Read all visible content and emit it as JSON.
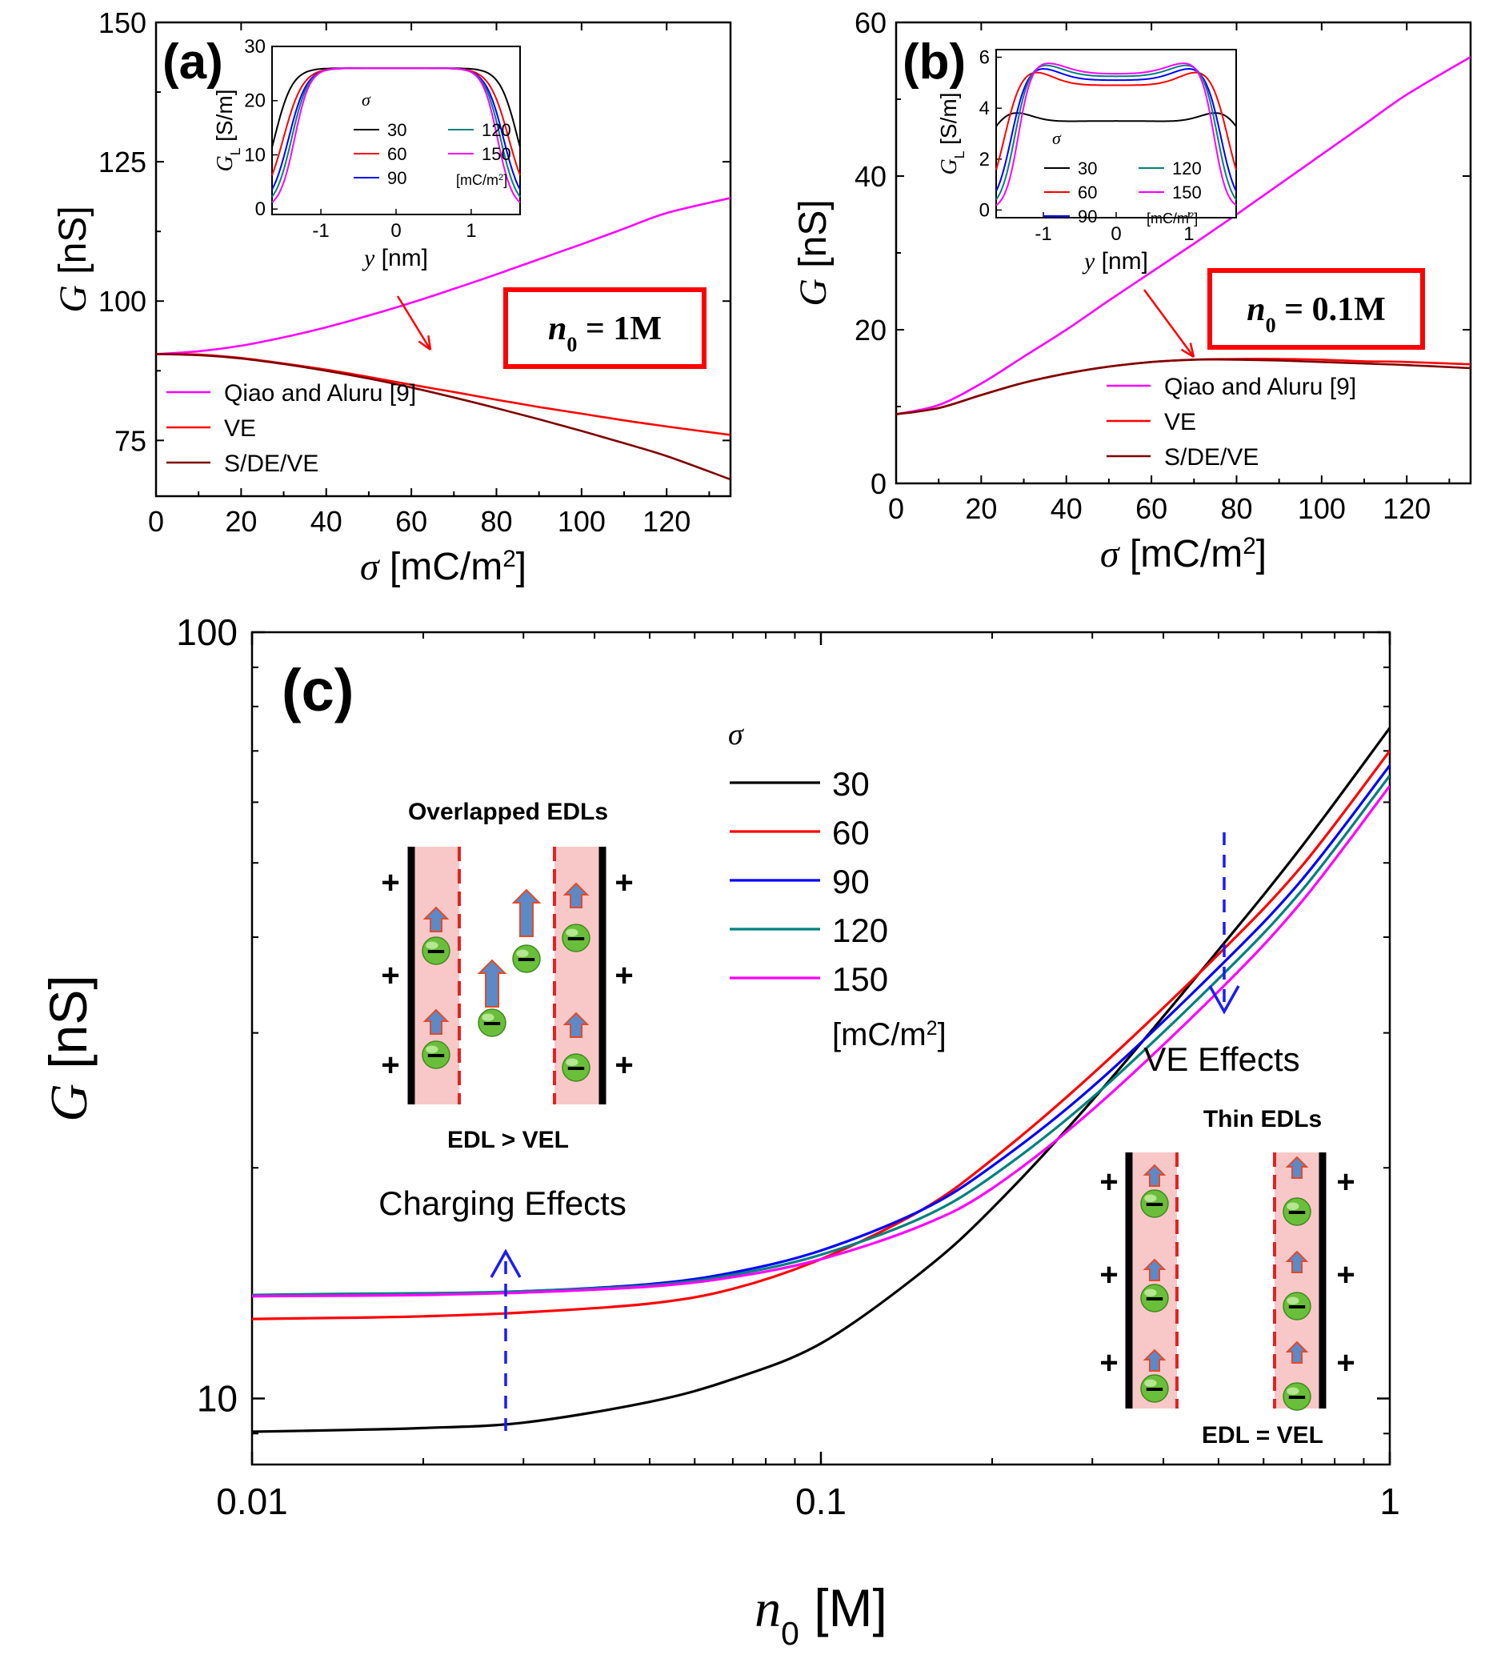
{
  "colors": {
    "black": "#000000",
    "red": "#ff0000",
    "blue": "#0000ff",
    "teal": "#008080",
    "magenta": "#ff00ff",
    "darkred": "#7f0000",
    "annot_blue": "#1a1aff",
    "edl_fill": "#f8c8c8",
    "arrow_fill": "#5b8ac7",
    "ion_green": "#6abf3a"
  },
  "chart_data": [
    {
      "panel": "(a)",
      "type": "line",
      "xlabel_var": "σ",
      "xlabel_unit": "[mC/m²]",
      "ylabel_var": "G",
      "ylabel_unit": "[nS]",
      "xlim": [
        0,
        135
      ],
      "ylim": [
        65,
        150
      ],
      "xticks": [
        0,
        20,
        40,
        60,
        80,
        100,
        120
      ],
      "yticks": [
        75,
        100,
        125,
        150
      ],
      "box_label_var": "n",
      "box_label_sub": "0",
      "box_label_val": " = 1M",
      "series": [
        {
          "name": "Qiao and Aluru [9]",
          "color": "#ff00ff",
          "x": [
            0,
            10,
            20,
            30,
            40,
            50,
            60,
            70,
            80,
            90,
            100,
            110,
            120,
            135
          ],
          "y": [
            90.5,
            91,
            92,
            93.5,
            95.3,
            97.4,
            99.7,
            102.2,
            104.8,
            107.5,
            110.2,
            113,
            115.8,
            118.5
          ]
        },
        {
          "name": "VE",
          "color": "#ff0000",
          "x": [
            0,
            10,
            20,
            30,
            40,
            50,
            60,
            70,
            80,
            90,
            100,
            110,
            120,
            135
          ],
          "y": [
            90.5,
            90.4,
            89.8,
            88.8,
            87.7,
            86.4,
            85,
            83.7,
            82.3,
            81,
            79.8,
            78.6,
            77.5,
            76
          ]
        },
        {
          "name": "S/DE/VE",
          "color": "#7f0000",
          "x": [
            0,
            10,
            20,
            30,
            40,
            50,
            60,
            70,
            80,
            90,
            100,
            110,
            120,
            135
          ],
          "y": [
            90.5,
            90.3,
            89.7,
            88.7,
            87.5,
            86.1,
            84.5,
            82.7,
            80.8,
            78.8,
            76.7,
            74.5,
            72.2,
            68
          ]
        }
      ],
      "inset": {
        "xlabel_var": "y",
        "xlabel_unit": "[nm]",
        "ylabel_var": "G",
        "ylabel_sub": "L",
        "ylabel_unit": "[S/m]",
        "xlim": [
          -1.65,
          1.65
        ],
        "ylim": [
          -1,
          30
        ],
        "xticks": [
          -1,
          0,
          1
        ],
        "xtick_labels": [
          "-1",
          "0",
          "1"
        ],
        "yticks": [
          0,
          10,
          20,
          30
        ],
        "legend_title": "σ",
        "legend_unit": "[mC/m²]",
        "series": [
          {
            "name": "30",
            "color": "#000000",
            "plateau": 26,
            "edge": 1.62,
            "width": 0.12,
            "rim": 0
          },
          {
            "name": "60",
            "color": "#ff0000",
            "plateau": 26,
            "edge": 1.5,
            "width": 0.13,
            "rim": 0
          },
          {
            "name": "90",
            "color": "#0000ff",
            "plateau": 26,
            "edge": 1.43,
            "width": 0.12,
            "rim": 0
          },
          {
            "name": "120",
            "color": "#008080",
            "plateau": 26,
            "edge": 1.39,
            "width": 0.11,
            "rim": 0
          },
          {
            "name": "150",
            "color": "#ff00ff",
            "plateau": 26,
            "edge": 1.35,
            "width": 0.1,
            "rim": 0
          }
        ]
      }
    },
    {
      "panel": "(b)",
      "type": "line",
      "xlabel_var": "σ",
      "xlabel_unit": "[mC/m²]",
      "ylabel_var": "G",
      "ylabel_unit": "[nS]",
      "xlim": [
        0,
        135
      ],
      "ylim": [
        0,
        60
      ],
      "xticks": [
        0,
        20,
        40,
        60,
        80,
        100,
        120
      ],
      "yticks": [
        0,
        20,
        40,
        60
      ],
      "box_label_var": "n",
      "box_label_sub": "0",
      "box_label_val": " = 0.1M",
      "series": [
        {
          "name": "Qiao and Aluru [9]",
          "color": "#ff00ff",
          "x": [
            0,
            10,
            20,
            30,
            40,
            50,
            60,
            70,
            80,
            90,
            100,
            110,
            120,
            135
          ],
          "y": [
            9,
            10.2,
            13,
            16.5,
            20,
            23.8,
            27.5,
            31.2,
            35,
            38.9,
            42.8,
            46.7,
            50.6,
            55.5
          ]
        },
        {
          "name": "VE",
          "color": "#ff0000",
          "x": [
            0,
            10,
            20,
            30,
            40,
            50,
            60,
            70,
            80,
            90,
            100,
            110,
            120,
            135
          ],
          "y": [
            9,
            9.8,
            11.5,
            13.1,
            14.3,
            15.2,
            15.8,
            16.1,
            16.2,
            16.2,
            16.1,
            15.9,
            15.8,
            15.5
          ]
        },
        {
          "name": "S/DE/VE",
          "color": "#7f0000",
          "x": [
            0,
            10,
            20,
            30,
            40,
            50,
            60,
            70,
            80,
            90,
            100,
            110,
            120,
            135
          ],
          "y": [
            9,
            9.8,
            11.5,
            13.1,
            14.3,
            15.2,
            15.8,
            16.1,
            16.1,
            16,
            15.8,
            15.6,
            15.4,
            15
          ]
        }
      ],
      "inset": {
        "xlabel_var": "y",
        "xlabel_unit": "[nm]",
        "ylabel_var": "G",
        "ylabel_sub": "L",
        "ylabel_unit": "[S/m]",
        "xlim": [
          -1.65,
          1.65
        ],
        "ylim": [
          -0.3,
          6.3
        ],
        "xticks": [
          -1,
          0,
          1
        ],
        "xtick_labels": [
          "-1",
          "0",
          "1"
        ],
        "yticks": [
          0,
          2,
          4,
          6
        ],
        "legend_title": "σ",
        "legend_unit": "[mC/m²]",
        "series": [
          {
            "name": "30",
            "color": "#000000",
            "plateau": 3.5,
            "edge": 1.9,
            "width": 0.25,
            "rim": 1.0
          },
          {
            "name": "60",
            "color": "#ff0000",
            "plateau": 4.9,
            "edge": 1.55,
            "width": 0.12,
            "rim": 0.7
          },
          {
            "name": "90",
            "color": "#0000ff",
            "plateau": 5.1,
            "edge": 1.45,
            "width": 0.11,
            "rim": 0.6
          },
          {
            "name": "120",
            "color": "#008080",
            "plateau": 5.25,
            "edge": 1.4,
            "width": 0.1,
            "rim": 0.55
          },
          {
            "name": "150",
            "color": "#ff00ff",
            "plateau": 5.35,
            "edge": 1.35,
            "width": 0.09,
            "rim": 0.5
          }
        ]
      }
    },
    {
      "panel": "(c)",
      "type": "line",
      "xscale": "log",
      "yscale": "log",
      "xlabel_var": "n",
      "xlabel_sub": "0",
      "xlabel_unit": "[M]",
      "ylabel_var": "G",
      "ylabel_unit": "[nS]",
      "xlim": [
        0.01,
        1
      ],
      "ylim": [
        8.2,
        100
      ],
      "xticks": [
        0.01,
        0.1,
        1
      ],
      "xtick_labels": [
        "0.01",
        "0.1",
        "1"
      ],
      "yticks": [
        10,
        100
      ],
      "ytick_labels": [
        "10",
        "100"
      ],
      "legend_title": "σ",
      "legend_unit": "[mC/m²]",
      "series": [
        {
          "name": "30",
          "color": "#000000",
          "x": [
            0.01,
            0.015,
            0.02,
            0.03,
            0.05,
            0.07,
            0.1,
            0.15,
            0.2,
            0.3,
            0.5,
            0.7,
            1
          ],
          "y": [
            9.05,
            9.1,
            9.15,
            9.3,
            9.9,
            10.6,
            11.8,
            14.6,
            17.7,
            24.5,
            38.5,
            52.5,
            75
          ]
        },
        {
          "name": "60",
          "color": "#ff0000",
          "x": [
            0.01,
            0.015,
            0.02,
            0.03,
            0.05,
            0.07,
            0.1,
            0.15,
            0.2,
            0.3,
            0.5,
            0.7,
            1
          ],
          "y": [
            12.7,
            12.75,
            12.8,
            12.95,
            13.3,
            13.9,
            15.2,
            17.6,
            20.5,
            26.5,
            38,
            49.5,
            70
          ]
        },
        {
          "name": "90",
          "color": "#0000ff",
          "x": [
            0.01,
            0.015,
            0.02,
            0.03,
            0.05,
            0.07,
            0.1,
            0.15,
            0.2,
            0.3,
            0.5,
            0.7,
            1
          ],
          "y": [
            13.6,
            13.65,
            13.7,
            13.8,
            14.1,
            14.6,
            15.6,
            17.6,
            20.1,
            25.5,
            36.5,
            47.5,
            67
          ]
        },
        {
          "name": "120",
          "color": "#008080",
          "x": [
            0.01,
            0.015,
            0.02,
            0.03,
            0.05,
            0.07,
            0.1,
            0.15,
            0.2,
            0.3,
            0.5,
            0.7,
            1
          ],
          "y": [
            13.65,
            13.7,
            13.72,
            13.8,
            14.05,
            14.5,
            15.4,
            17.2,
            19.5,
            24.7,
            35.3,
            46,
            65
          ]
        },
        {
          "name": "150",
          "color": "#ff00ff",
          "x": [
            0.01,
            0.015,
            0.02,
            0.03,
            0.05,
            0.07,
            0.1,
            0.15,
            0.2,
            0.3,
            0.5,
            0.7,
            1
          ],
          "y": [
            13.6,
            13.62,
            13.65,
            13.75,
            14,
            14.4,
            15.2,
            16.8,
            18.8,
            23.8,
            34,
            44.5,
            63
          ]
        }
      ],
      "annotations": {
        "charging": "Charging Effects",
        "ve": "VE Effects",
        "overlapped_title": "Overlapped EDLs",
        "overlapped_rel": "EDL > VEL",
        "thin_title": "Thin EDLs",
        "thin_rel": "EDL = VEL",
        "plus": "+",
        "minus": "−"
      }
    }
  ]
}
